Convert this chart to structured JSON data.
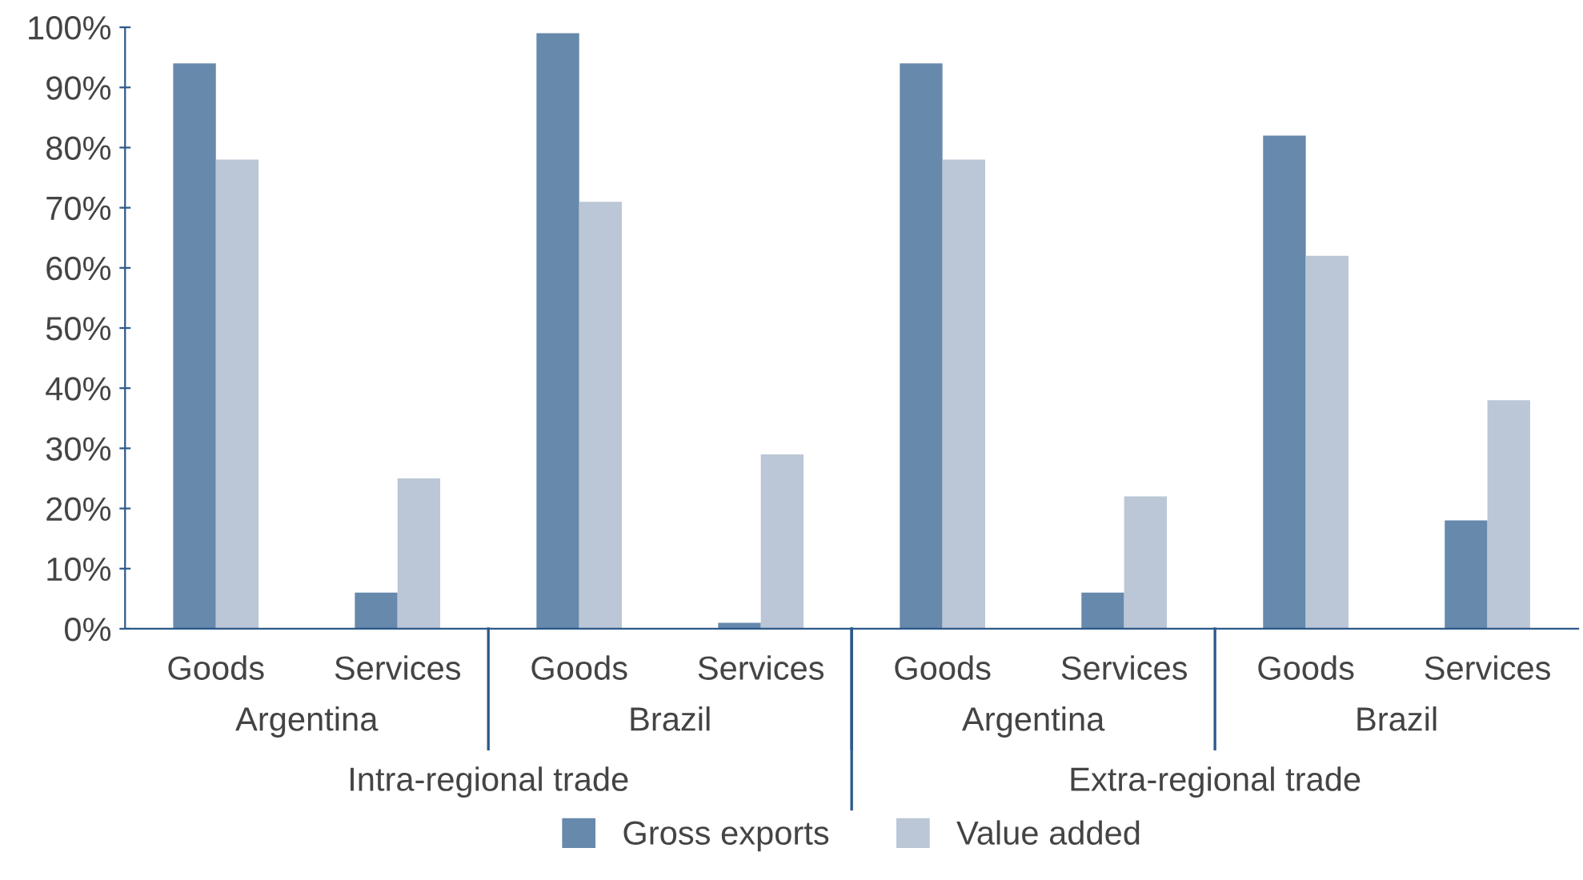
{
  "chart_data": {
    "type": "bar",
    "categories": [
      "Goods",
      "Services",
      "Goods",
      "Services",
      "Goods",
      "Services",
      "Goods",
      "Services"
    ],
    "series": [
      {
        "name": "Gross exports",
        "color": "#6689ac",
        "values": [
          94,
          6,
          99,
          1,
          94,
          6,
          82,
          18
        ]
      },
      {
        "name": "Value added",
        "color": "#bbc6d6",
        "values": [
          78,
          25,
          71,
          29,
          78,
          22,
          62,
          38
        ]
      }
    ],
    "annotations": [
      "Argentina",
      "Brazil",
      "Argentina",
      "Brazil",
      "Intra-regional trade",
      "Extra-regional trade"
    ],
    "ylim": [
      0,
      100
    ],
    "yticks": [
      {
        "value": 0,
        "label": "0%"
      },
      {
        "value": 10,
        "label": "10%"
      },
      {
        "value": 20,
        "label": "20%"
      },
      {
        "value": 30,
        "label": "30%"
      },
      {
        "value": 40,
        "label": "40%"
      },
      {
        "value": 50,
        "label": "50%"
      },
      {
        "value": 60,
        "label": "60%"
      },
      {
        "value": 70,
        "label": "70%"
      },
      {
        "value": 80,
        "label": "80%"
      },
      {
        "value": 90,
        "label": "90%"
      },
      {
        "value": 100,
        "label": "100%"
      }
    ],
    "grid": false,
    "legend": "bottom"
  }
}
